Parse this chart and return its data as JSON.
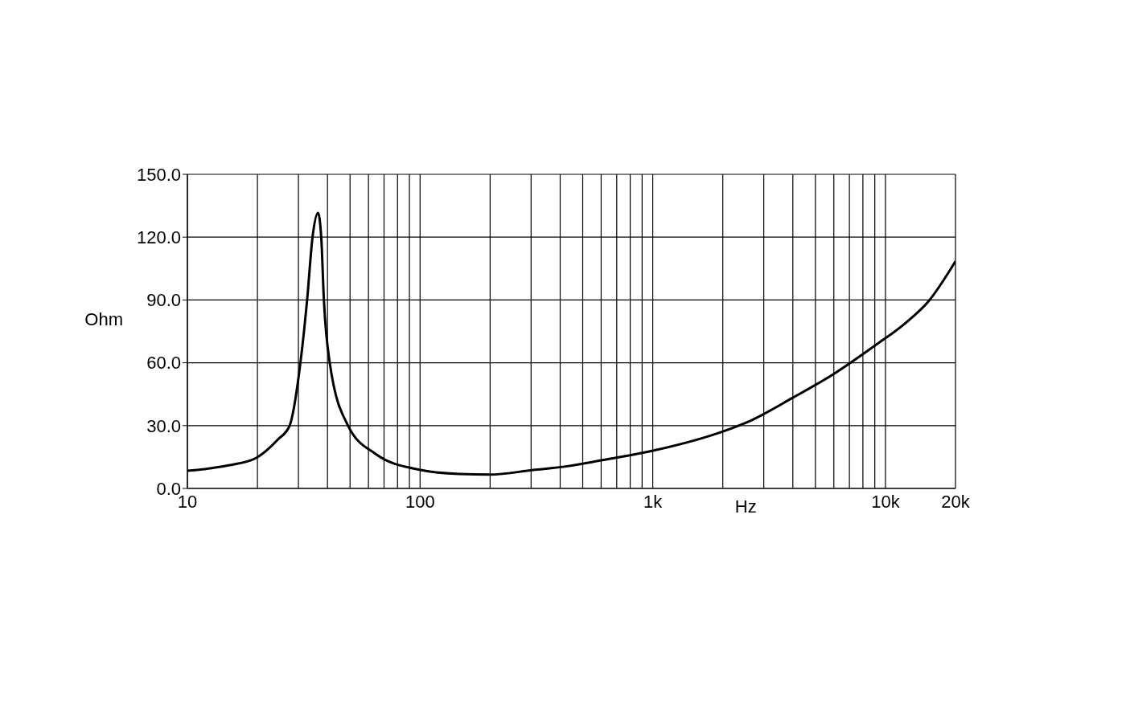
{
  "chart_data": {
    "type": "line",
    "xlabel": "Hz",
    "ylabel": "Ohm",
    "x": [
      10,
      15,
      19.7,
      24.5,
      27.5,
      30.6,
      32.7,
      34.5,
      36.4,
      37.6,
      38.6,
      40.9,
      49,
      64.5,
      97.5,
      147,
      200,
      306,
      429,
      601,
      1000,
      2000,
      2660,
      3980,
      5980,
      8980,
      12200,
      15400,
      20000
    ],
    "series": [
      {
        "color": "#000000",
        "values": [
          8.4,
          11,
          14.5,
          23.4,
          30,
          60,
          90,
          120,
          131.6,
          120,
          90,
          60,
          30,
          16.4,
          9.1,
          6.9,
          6.6,
          8.8,
          10.6,
          13.4,
          18,
          27.2,
          32.6,
          43.2,
          54.6,
          68.1,
          79,
          89.7,
          108.5
        ]
      }
    ],
    "log": "x",
    "xlim": [
      10,
      20000
    ],
    "xticks": [
      10,
      {
        "value": 20,
        "label": null
      },
      {
        "value": 30,
        "label": null
      },
      {
        "value": 40,
        "label": null
      },
      {
        "value": 50,
        "label": null
      },
      {
        "value": 60,
        "label": null
      },
      {
        "value": 70,
        "label": null
      },
      {
        "value": 80,
        "label": null
      },
      {
        "value": 90,
        "label": null
      },
      100,
      {
        "value": 200,
        "label": null
      },
      {
        "value": 300,
        "label": null
      },
      {
        "value": 400,
        "label": null
      },
      {
        "value": 500,
        "label": null
      },
      {
        "value": 600,
        "label": null
      },
      {
        "value": 700,
        "label": null
      },
      {
        "value": 800,
        "label": null
      },
      {
        "value": 900,
        "label": null
      },
      {
        "value": 1000,
        "label": "1k"
      },
      {
        "value": 2000,
        "label": null
      },
      {
        "value": 3000,
        "label": null
      },
      {
        "value": 4000,
        "label": null
      },
      {
        "value": 5000,
        "label": null
      },
      {
        "value": 6000,
        "label": null
      },
      {
        "value": 7000,
        "label": null
      },
      {
        "value": 8000,
        "label": null
      },
      {
        "value": 9000,
        "label": null
      },
      {
        "value": 10000,
        "label": "10k"
      },
      {
        "value": 20000,
        "label": "20k"
      }
    ],
    "ylim": [
      0,
      150
    ],
    "yticks": [
      {
        "value": 0,
        "label": "0.0"
      },
      {
        "value": 30,
        "label": "30.0"
      },
      {
        "value": 60,
        "label": "60.0"
      },
      {
        "value": 90,
        "label": "90.0"
      },
      {
        "value": 120,
        "label": "120.0"
      },
      {
        "value": 150,
        "label": "150.0"
      }
    ],
    "grid": true,
    "marker": "none",
    "line_style": "solid"
  }
}
